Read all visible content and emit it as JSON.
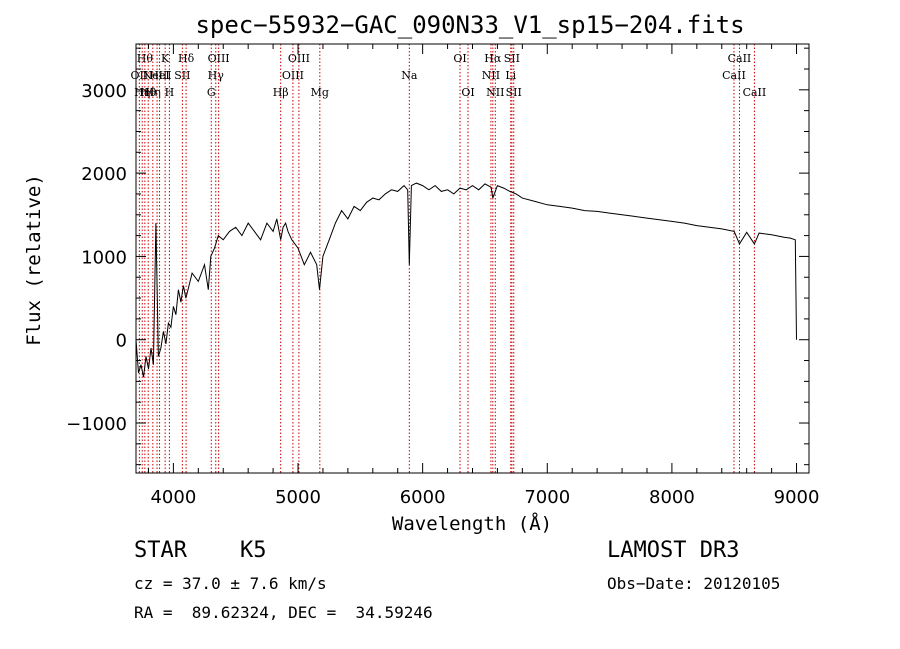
{
  "chart_data": {
    "type": "line",
    "title": "spec−55932−GAC_090N33_V1_sp15−204.fits",
    "xlabel": "Wavelength (Å)",
    "ylabel": "Flux (relative)",
    "xlim": [
      3700,
      9100
    ],
    "ylim": [
      -1600,
      3550
    ],
    "x_ticks": [
      4000,
      5000,
      6000,
      7000,
      8000,
      9000
    ],
    "y_ticks": [
      -1000,
      0,
      1000,
      2000,
      3000
    ],
    "x_tick_labels": [
      "4000",
      "5000",
      "6000",
      "7000",
      "8000",
      "9000"
    ],
    "y_tick_labels": [
      "−1000",
      "0",
      "1000",
      "2000",
      "3000"
    ],
    "series": [
      {
        "name": "flux",
        "x": [
          3700,
          3720,
          3740,
          3760,
          3780,
          3800,
          3820,
          3840,
          3860,
          3880,
          3900,
          3920,
          3940,
          3960,
          3980,
          4000,
          4020,
          4040,
          4060,
          4080,
          4100,
          4150,
          4200,
          4250,
          4280,
          4300,
          4330,
          4360,
          4400,
          4450,
          4500,
          4550,
          4600,
          4650,
          4700,
          4750,
          4800,
          4830,
          4861,
          4880,
          4900,
          4920,
          4950,
          5000,
          5050,
          5100,
          5150,
          5172,
          5200,
          5250,
          5300,
          5350,
          5400,
          5450,
          5500,
          5550,
          5600,
          5650,
          5700,
          5750,
          5800,
          5850,
          5880,
          5893,
          5910,
          5950,
          6000,
          6050,
          6100,
          6150,
          6200,
          6250,
          6300,
          6350,
          6400,
          6450,
          6500,
          6550,
          6563,
          6600,
          6650,
          6700,
          6750,
          6800,
          6900,
          7000,
          7100,
          7200,
          7300,
          7400,
          7500,
          7600,
          7700,
          7800,
          7900,
          8000,
          8100,
          8200,
          8300,
          8400,
          8500,
          8542,
          8600,
          8662,
          8700,
          8800,
          8900,
          8950,
          8990,
          9000
        ],
        "y": [
          0,
          -400,
          -300,
          -450,
          -200,
          -350,
          -100,
          -300,
          1400,
          -200,
          -100,
          100,
          -50,
          200,
          150,
          400,
          300,
          600,
          450,
          650,
          500,
          800,
          700,
          900,
          600,
          1000,
          1100,
          1250,
          1200,
          1300,
          1350,
          1250,
          1400,
          1300,
          1200,
          1400,
          1300,
          1450,
          1200,
          1350,
          1400,
          1300,
          1200,
          1100,
          900,
          1050,
          900,
          600,
          1000,
          1200,
          1400,
          1550,
          1450,
          1600,
          1550,
          1650,
          1700,
          1680,
          1750,
          1800,
          1780,
          1850,
          1800,
          900,
          1850,
          1880,
          1850,
          1800,
          1850,
          1780,
          1800,
          1750,
          1820,
          1800,
          1850,
          1800,
          1870,
          1830,
          1700,
          1850,
          1820,
          1780,
          1750,
          1700,
          1660,
          1620,
          1600,
          1580,
          1550,
          1540,
          1520,
          1500,
          1480,
          1460,
          1440,
          1420,
          1400,
          1370,
          1350,
          1330,
          1300,
          1150,
          1290,
          1150,
          1280,
          1260,
          1230,
          1220,
          1200,
          0
        ]
      }
    ],
    "lines": [
      {
        "wl": 3727,
        "label": "OII",
        "row": 2
      },
      {
        "wl": 3750,
        "label": "Hη",
        "row": 3
      },
      {
        "wl": 3771,
        "label": "Hθ",
        "row": 1
      },
      {
        "wl": 3798,
        "label": "Hθ",
        "row": 3
      },
      {
        "wl": 3835,
        "label": "Hη",
        "row": 3
      },
      {
        "wl": 3869,
        "label": "NeIII",
        "row": 2
      },
      {
        "wl": 3889,
        "label": "HeI",
        "row": 2
      },
      {
        "wl": 3934,
        "label": "K",
        "row": 1
      },
      {
        "wl": 3968,
        "label": "H",
        "row": 3
      },
      {
        "wl": 4072,
        "label": "SII",
        "row": 2
      },
      {
        "wl": 4102,
        "label": "Hδ",
        "row": 1
      },
      {
        "wl": 4304,
        "label": "G",
        "row": 3
      },
      {
        "wl": 4340,
        "label": "Hγ",
        "row": 2
      },
      {
        "wl": 4363,
        "label": "OIII",
        "row": 1
      },
      {
        "wl": 4861,
        "label": "Hβ",
        "row": 3
      },
      {
        "wl": 4959,
        "label": "OIII",
        "row": 2
      },
      {
        "wl": 5007,
        "label": "OIII",
        "row": 1
      },
      {
        "wl": 5175,
        "label": "Mg",
        "row": 3
      },
      {
        "wl": 5893,
        "label": "Na",
        "row": 2
      },
      {
        "wl": 6300,
        "label": "OI",
        "row": 1
      },
      {
        "wl": 6364,
        "label": "OI",
        "row": 3
      },
      {
        "wl": 6548,
        "label": "NII",
        "row": 2
      },
      {
        "wl": 6563,
        "label": "Hα",
        "row": 1
      },
      {
        "wl": 6583,
        "label": "NII",
        "row": 3
      },
      {
        "wl": 6707,
        "label": "Li",
        "row": 2
      },
      {
        "wl": 6716,
        "label": "SII",
        "row": 1
      },
      {
        "wl": 6731,
        "label": "SII",
        "row": 3
      },
      {
        "wl": 8498,
        "label": "CaII",
        "row": 2
      },
      {
        "wl": 8542,
        "label": "CaII",
        "row": 1
      },
      {
        "wl": 8662,
        "label": "CaII",
        "row": 3
      }
    ],
    "line_color": "#cc0000"
  },
  "info": {
    "object_type": "STAR",
    "subclass": "K5",
    "survey": "LAMOST DR3",
    "redshift": "cz = 37.0 ± 7.6 km/s",
    "obs_date": "Obs−Date: 20120105",
    "coords": "RA =  89.62324, DEC =  34.59246"
  }
}
